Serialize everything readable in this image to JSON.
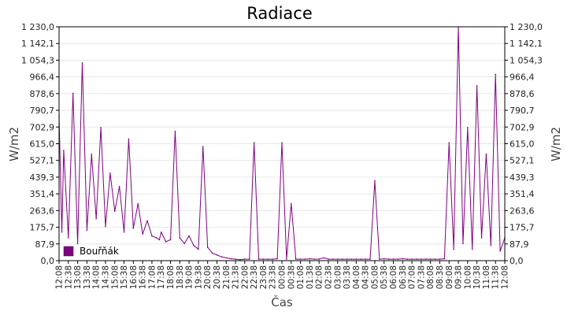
{
  "chart_data": {
    "type": "line",
    "title": "Radiace",
    "xlabel": "Čas",
    "ylabel": "W/m2",
    "ylabel_right": "W/m2",
    "ylim": [
      0,
      1230
    ],
    "y_ticks": [
      "0,0",
      "87,9",
      "175,7",
      "263,6",
      "351,4",
      "439,3",
      "527,1",
      "615,0",
      "702,9",
      "790,7",
      "878,6",
      "966,4",
      "1 054,3",
      "1 142,1",
      "1 230,0"
    ],
    "x_ticks": [
      "12:08",
      "12:38",
      "13:08",
      "13:38",
      "14:08",
      "14:38",
      "15:08",
      "15:38",
      "16:08",
      "16:38",
      "17:08",
      "17:38",
      "18:08",
      "18:38",
      "19:08",
      "19:38",
      "20:08",
      "20:38",
      "21:08",
      "21:38",
      "22:08",
      "22:38",
      "23:08",
      "23:38",
      "00:08",
      "00:38",
      "01:08",
      "01:38",
      "02:08",
      "02:38",
      "03:08",
      "03:38",
      "04:08",
      "04:38",
      "05:08",
      "05:38",
      "06:08",
      "06:38",
      "07:08",
      "07:38",
      "08:08",
      "08:38",
      "09:08",
      "09:38",
      "10:08",
      "10:38",
      "11:08",
      "11:38",
      "12:08"
    ],
    "grid": true,
    "legend_position": "bottom-left",
    "series": [
      {
        "name": "Bouřňák",
        "color": "#800080",
        "x": [
          0,
          0.3,
          0.5,
          1.0,
          1.5,
          2.0,
          2.5,
          3.0,
          3.5,
          4.0,
          4.5,
          5.0,
          5.5,
          6.0,
          6.5,
          7.0,
          7.5,
          8.0,
          8.5,
          9.0,
          9.5,
          10.0,
          10.5,
          10.8,
          11.0,
          11.5,
          12.0,
          12.5,
          13.0,
          13.5,
          14.0,
          14.5,
          15.0,
          15.5,
          16.0,
          16.5,
          17.0,
          17.5,
          18.0,
          18.5,
          19.0,
          19.5,
          20.0,
          20.5,
          21.0,
          21.5,
          22.0,
          22.5,
          23.0,
          23.5,
          24.0,
          24.5,
          25.0,
          25.5,
          26.0,
          26.5,
          27.0,
          27.5,
          28.0,
          28.5,
          29.0,
          29.5,
          30.0,
          30.5,
          31.0,
          31.5,
          32.0,
          32.5,
          33.0,
          33.5,
          34.0,
          34.5,
          35.0,
          35.5,
          36.0,
          36.5,
          37.0,
          37.5,
          38.0,
          38.5,
          39.0,
          39.5,
          40.0,
          40.5,
          41.0,
          41.5,
          42.0,
          42.5,
          43.0,
          43.5,
          44.0,
          44.5,
          45.0,
          45.5,
          46.0,
          46.5,
          47.0,
          47.5,
          48.0
        ],
        "y": [
          760,
          150,
          580,
          120,
          880,
          90,
          1040,
          160,
          560,
          220,
          700,
          180,
          460,
          260,
          390,
          150,
          640,
          170,
          300,
          140,
          210,
          130,
          120,
          110,
          150,
          100,
          110,
          680,
          120,
          90,
          130,
          80,
          60,
          600,
          70,
          40,
          30,
          20,
          15,
          10,
          8,
          5,
          8,
          8,
          620,
          8,
          8,
          8,
          8,
          10,
          620,
          8,
          300,
          8,
          8,
          8,
          10,
          8,
          8,
          15,
          8,
          8,
          8,
          8,
          8,
          8,
          8,
          8,
          8,
          8,
          420,
          8,
          10,
          8,
          8,
          8,
          10,
          8,
          8,
          8,
          8,
          8,
          8,
          8,
          8,
          10,
          620,
          60,
          1230,
          90,
          700,
          60,
          920,
          120,
          560,
          80,
          980,
          50,
          120
        ]
      }
    ]
  }
}
